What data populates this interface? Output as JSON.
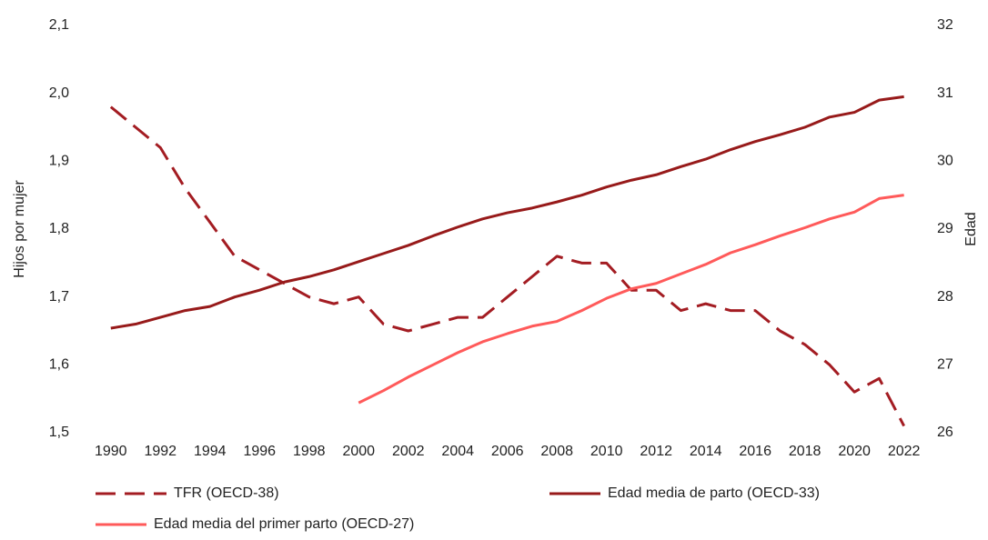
{
  "chart_data": {
    "type": "line",
    "ylabel": "Hijos por mujer",
    "y2label": "Edad",
    "x": [
      1990,
      1991,
      1992,
      1993,
      1994,
      1995,
      1996,
      1997,
      1998,
      1999,
      2000,
      2001,
      2002,
      2003,
      2004,
      2005,
      2006,
      2007,
      2008,
      2009,
      2010,
      2011,
      2012,
      2013,
      2014,
      2015,
      2016,
      2017,
      2018,
      2019,
      2020,
      2021,
      2022
    ],
    "xlim": [
      1989.2,
      2022.6
    ],
    "xticks": [
      1990,
      1992,
      1994,
      1996,
      1998,
      2000,
      2002,
      2004,
      2006,
      2008,
      2010,
      2012,
      2014,
      2016,
      2018,
      2020,
      2022
    ],
    "ylim": [
      1.5,
      2.1
    ],
    "yticks": [
      {
        "value": 1.5,
        "label": "1,5"
      },
      {
        "value": 1.6,
        "label": "1,6"
      },
      {
        "value": 1.7,
        "label": "1,7"
      },
      {
        "value": 1.8,
        "label": "1,8"
      },
      {
        "value": 1.9,
        "label": "1,9"
      },
      {
        "value": 2.0,
        "label": "2,0"
      },
      {
        "value": 2.1,
        "label": "2,1"
      }
    ],
    "y2lim": [
      26,
      32
    ],
    "y2ticks": [
      26,
      27,
      28,
      29,
      30,
      31,
      32
    ],
    "grid": false,
    "series": [
      {
        "name": "TFR (OECD-38)",
        "color": "#a31c22",
        "linestyle": "dashed",
        "axis": "y",
        "values": [
          1.98,
          1.95,
          1.92,
          1.86,
          1.81,
          1.76,
          1.74,
          1.72,
          1.7,
          1.69,
          1.7,
          1.66,
          1.65,
          1.66,
          1.67,
          1.67,
          1.7,
          1.73,
          1.76,
          1.75,
          1.75,
          1.71,
          1.71,
          1.68,
          1.69,
          1.68,
          1.68,
          1.65,
          1.63,
          1.6,
          1.56,
          1.58,
          1.51
        ]
      },
      {
        "name": "Edad media de parto (OECD-33)",
        "color": "#971a1a",
        "linestyle": "solid",
        "axis": "y2",
        "values": [
          27.54,
          27.6,
          27.7,
          27.8,
          27.86,
          28.0,
          28.1,
          28.22,
          28.3,
          28.4,
          28.52,
          28.64,
          28.76,
          28.9,
          29.03,
          29.15,
          29.24,
          29.31,
          29.4,
          29.5,
          29.62,
          29.72,
          29.8,
          29.92,
          30.03,
          30.17,
          30.29,
          30.39,
          30.5,
          30.65,
          30.72,
          30.9,
          30.95
        ]
      },
      {
        "name": "Edad media del primer parto (OECD-27)",
        "color": "#ff5a5a",
        "linestyle": "solid",
        "axis": "y2",
        "values": [
          null,
          null,
          null,
          null,
          null,
          null,
          null,
          null,
          null,
          null,
          26.44,
          26.62,
          26.82,
          27.0,
          27.18,
          27.34,
          27.46,
          27.57,
          27.64,
          27.8,
          27.98,
          28.12,
          28.2,
          28.34,
          28.48,
          28.65,
          28.77,
          28.9,
          29.02,
          29.15,
          29.25,
          29.45,
          29.5
        ]
      }
    ]
  }
}
